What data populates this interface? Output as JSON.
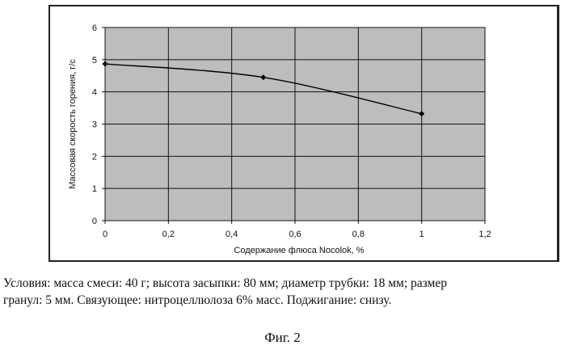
{
  "chart_data": {
    "type": "line",
    "x": [
      0,
      0.5,
      1
    ],
    "series": [
      {
        "values": [
          4.87,
          4.45,
          3.32
        ]
      }
    ],
    "xlabel": "Содержание флюса Nocolok, %",
    "ylabel": "Массовая скорость горения, г/с",
    "xlim": [
      0,
      1.2
    ],
    "ylim": [
      0,
      6
    ],
    "xticks": [
      "0",
      "0,2",
      "0,4",
      "0,6",
      "0,8",
      "1",
      "1,2"
    ],
    "yticks": [
      "0",
      "1",
      "2",
      "3",
      "4",
      "5",
      "6"
    ],
    "grid": true,
    "plot_background": "#bdbdbd",
    "line_color": "#000000"
  },
  "caption": {
    "line1": "Условия: масса смеси: 40 г; высота засыпки: 80 мм; диаметр трубки: 18 мм; размер",
    "line2": "гранул: 5 мм. Связующее: нитроцеллюлоза 6% масс. Поджигание: снизу."
  },
  "figure_label": "Фиг. 2"
}
